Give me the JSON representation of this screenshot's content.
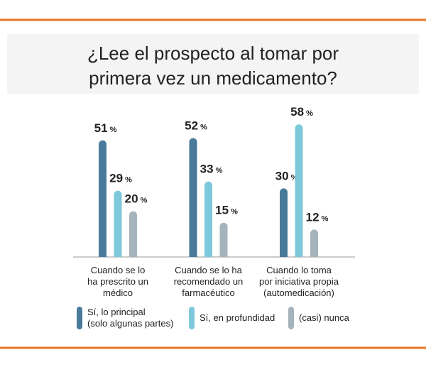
{
  "chart_data": {
    "type": "bar",
    "title": "¿Lee el prospecto al tomar por\nprimera vez un medicamento?",
    "categories": [
      "Cuando se lo\nha prescrito un\nmédico",
      "Cuando se lo ha\nrecomendado un\nfarmacéutico",
      "Cuando lo toma\npor iniciativa propia\n(automedicación)"
    ],
    "series": [
      {
        "name": "Sí, lo principal\n(solo algunas partes)",
        "color": "#4a7a99",
        "values": [
          51,
          52,
          30
        ],
        "value_labels": [
          "51 %",
          "52 %",
          "30 %"
        ]
      },
      {
        "name": "Sí, en profundidad",
        "color": "#7ec8db",
        "values": [
          29,
          33,
          58
        ],
        "value_labels": [
          "29 %",
          "33 %",
          "58 %"
        ]
      },
      {
        "name": "(casi) nunca",
        "color": "#a5b3bc",
        "values": [
          20,
          15,
          12
        ],
        "value_labels": [
          "20 %",
          "15 %",
          "12 %"
        ]
      }
    ]
  }
}
